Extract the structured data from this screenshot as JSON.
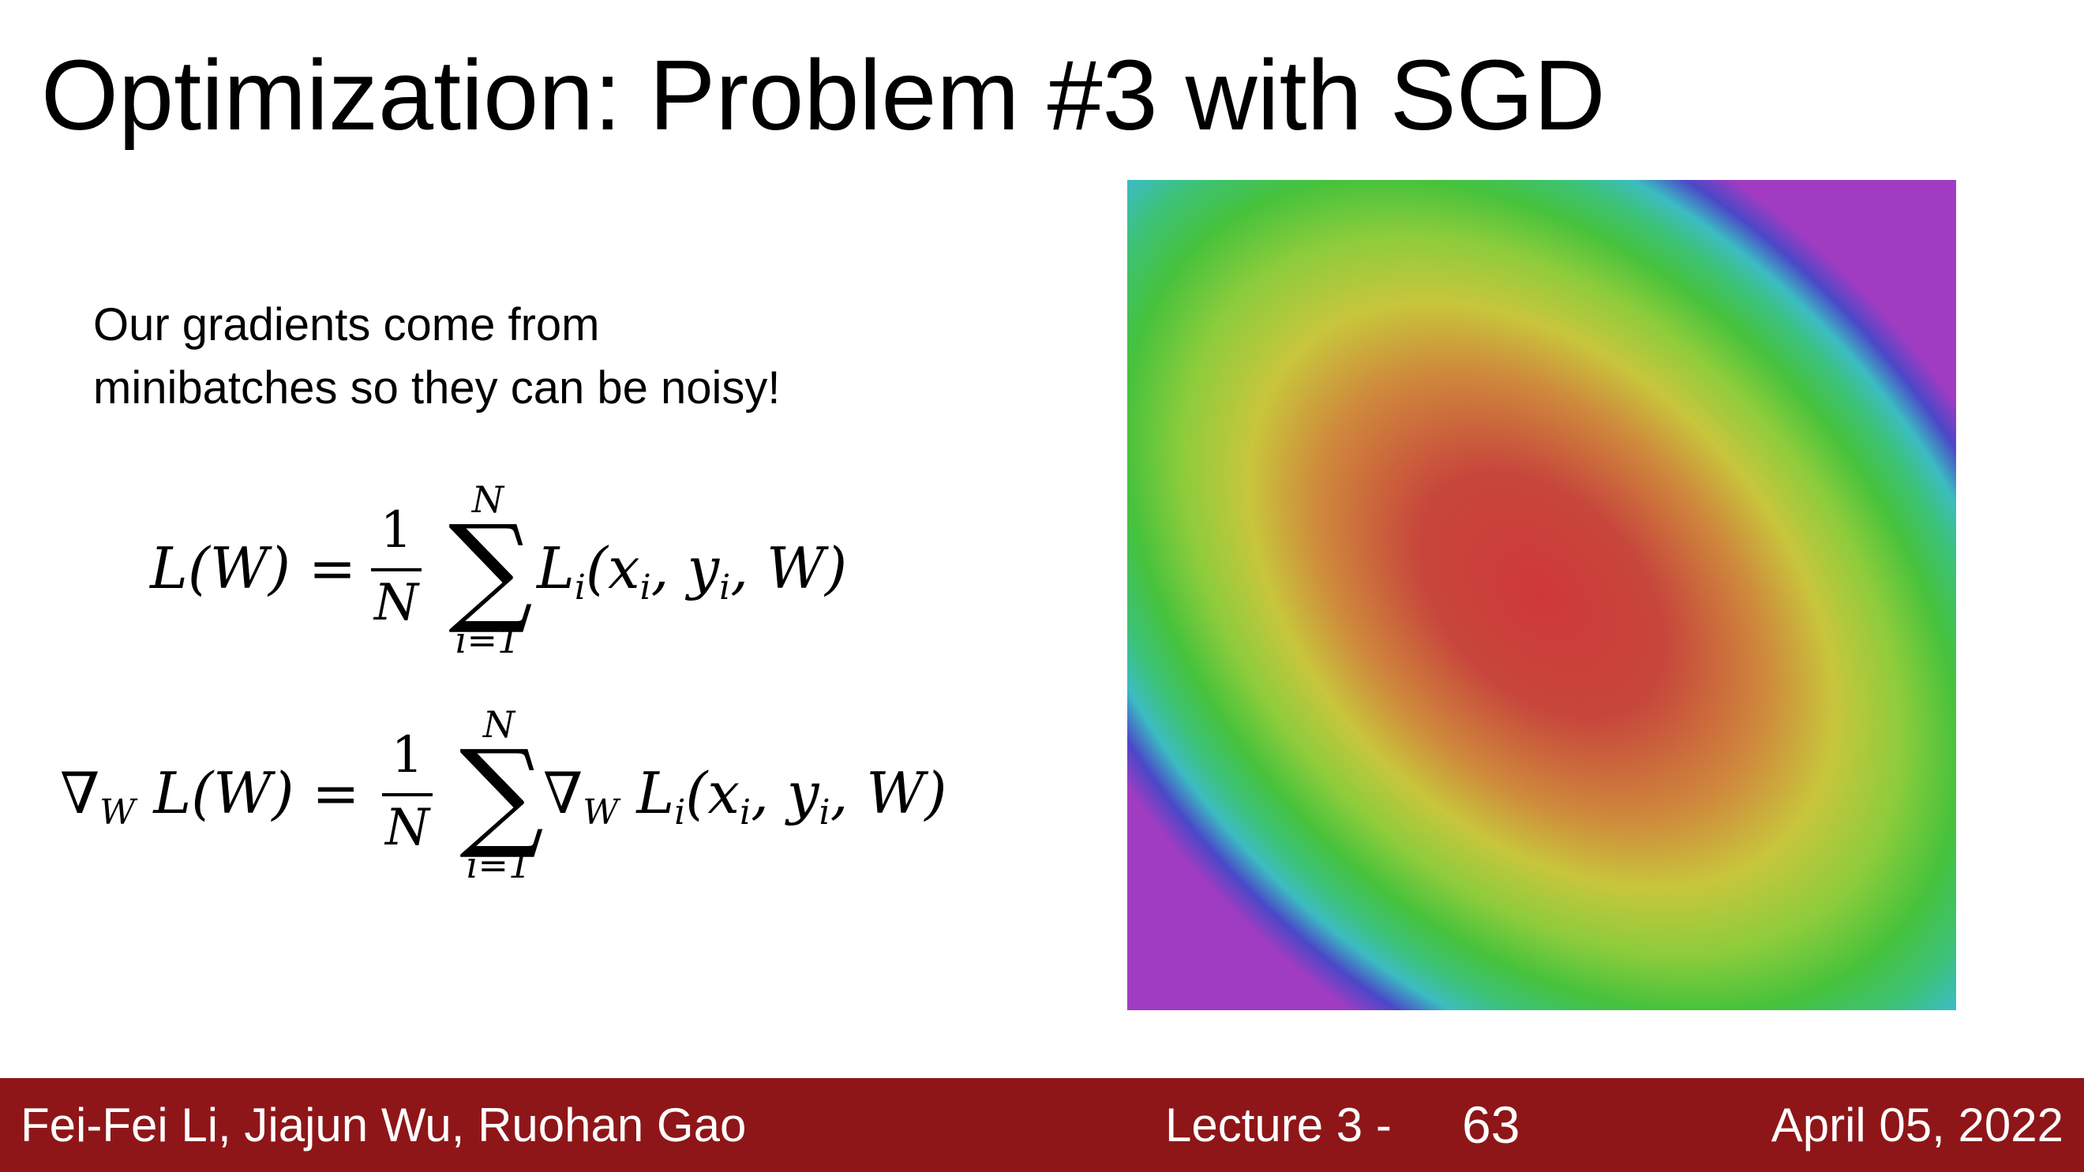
{
  "slide": {
    "title": "Optimization: Problem #3 with SGD",
    "body_lines": [
      "Our gradients come from",
      "minibatches so they can be noisy!"
    ]
  },
  "equations": {
    "eq1": {
      "lhs": "L(W) =",
      "frac_num": "1",
      "frac_den": "N",
      "sum_upper": "N",
      "sum_lower": "i=1",
      "sum_symbol": "∑",
      "term_main": "L",
      "term_sub": "i",
      "term_args": "(x",
      "x_sub": "i",
      "y_part": ", y",
      "y_sub": "i",
      "tail": ", W)"
    },
    "eq2": {
      "nabla": "∇",
      "nabla_sub": "W",
      "lhs": "L(W) =",
      "frac_num": "1",
      "frac_den": "N",
      "sum_upper": "N",
      "sum_lower": "i=1",
      "sum_symbol": "∑",
      "term_nabla": "∇",
      "term_nabla_sub": "W",
      "term_main": "L",
      "term_sub": "i",
      "term_args": "(x",
      "x_sub": "i",
      "y_part": ", y",
      "y_sub": "i",
      "tail": ", W)"
    }
  },
  "plot": {
    "description_colors": [
      "#c23a3a",
      "#d2a83c",
      "#c8c63c",
      "#4cc23c",
      "#3cb6c2",
      "#4a3cc8",
      "#a03cc2"
    ]
  },
  "footer": {
    "authors": "Fei-Fei Li, Jiajun Wu, Ruohan Gao",
    "lecture": "Lecture 3 -",
    "page_number": "63",
    "date": "April 05, 2022",
    "bg_color": "#8f1618"
  }
}
